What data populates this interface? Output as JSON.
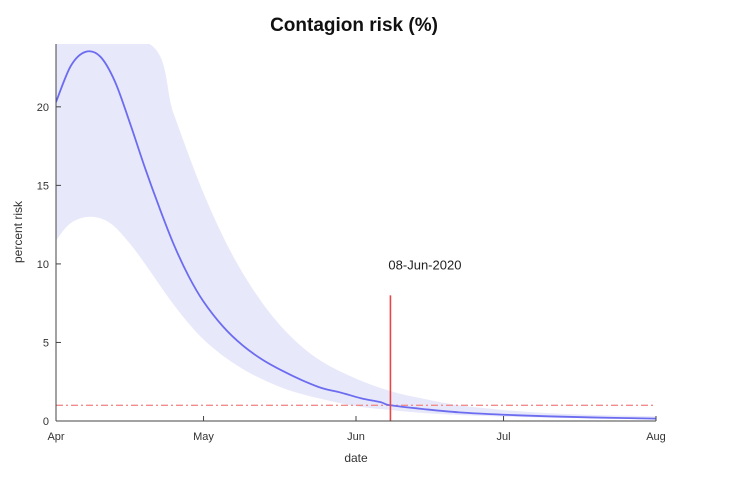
{
  "chart_data": {
    "type": "line",
    "title": "Contagion risk (%)",
    "xlabel": "date",
    "ylabel": "percent risk",
    "x_axis": {
      "type": "date",
      "range": [
        "2020-04-01",
        "2020-08-01"
      ],
      "ticks": [
        {
          "date": "2020-04-01",
          "label": "Apr"
        },
        {
          "date": "2020-05-01",
          "label": "May"
        },
        {
          "date": "2020-06-01",
          "label": "Jun"
        },
        {
          "date": "2020-07-01",
          "label": "Jul"
        },
        {
          "date": "2020-08-01",
          "label": "Aug"
        }
      ]
    },
    "y_axis": {
      "range": [
        0,
        24
      ],
      "ticks": [
        0,
        5,
        10,
        15,
        20
      ]
    },
    "grid": false,
    "legend": "none",
    "series": [
      {
        "kind": "line",
        "color": "#6c6cf0",
        "points": [
          [
            "2020-04-01",
            20.3
          ],
          [
            "2020-04-04",
            22.6
          ],
          [
            "2020-04-07",
            23.5
          ],
          [
            "2020-04-10",
            23.2
          ],
          [
            "2020-04-13",
            21.6
          ],
          [
            "2020-04-16",
            19.0
          ],
          [
            "2020-04-19",
            16.2
          ],
          [
            "2020-04-22",
            13.6
          ],
          [
            "2020-04-25",
            11.2
          ],
          [
            "2020-04-28",
            9.2
          ],
          [
            "2020-05-01",
            7.6
          ],
          [
            "2020-05-05",
            6.0
          ],
          [
            "2020-05-09",
            4.8
          ],
          [
            "2020-05-13",
            3.9
          ],
          [
            "2020-05-17",
            3.2
          ],
          [
            "2020-05-21",
            2.6
          ],
          [
            "2020-05-25",
            2.1
          ],
          [
            "2020-05-29",
            1.8
          ],
          [
            "2020-06-02",
            1.45
          ],
          [
            "2020-06-06",
            1.2
          ],
          [
            "2020-06-08",
            1.0
          ],
          [
            "2020-06-15",
            0.75
          ],
          [
            "2020-06-22",
            0.55
          ],
          [
            "2020-07-01",
            0.4
          ],
          [
            "2020-07-10",
            0.3
          ],
          [
            "2020-07-20",
            0.22
          ],
          [
            "2020-08-01",
            0.15
          ]
        ]
      },
      {
        "kind": "band",
        "color": "#e8e8fb",
        "upper": [
          [
            "2020-04-01",
            24
          ],
          [
            "2020-04-20",
            24
          ],
          [
            "2020-04-25",
            19.5
          ],
          [
            "2020-05-01",
            14.5
          ],
          [
            "2020-05-07",
            10.5
          ],
          [
            "2020-05-13",
            7.5
          ],
          [
            "2020-05-19",
            5.3
          ],
          [
            "2020-05-25",
            3.8
          ],
          [
            "2020-06-01",
            2.7
          ],
          [
            "2020-06-08",
            1.9
          ],
          [
            "2020-06-15",
            1.4
          ],
          [
            "2020-06-22",
            1.0
          ],
          [
            "2020-07-01",
            0.7
          ],
          [
            "2020-07-10",
            0.5
          ],
          [
            "2020-07-20",
            0.38
          ],
          [
            "2020-08-01",
            0.3
          ]
        ],
        "lower": [
          [
            "2020-04-01",
            11.5
          ],
          [
            "2020-04-04",
            12.6
          ],
          [
            "2020-04-08",
            13.0
          ],
          [
            "2020-04-12",
            12.6
          ],
          [
            "2020-04-16",
            11.3
          ],
          [
            "2020-04-20",
            9.6
          ],
          [
            "2020-04-24",
            7.8
          ],
          [
            "2020-04-28",
            6.2
          ],
          [
            "2020-05-02",
            4.9
          ],
          [
            "2020-05-07",
            3.7
          ],
          [
            "2020-05-12",
            2.8
          ],
          [
            "2020-05-18",
            2.0
          ],
          [
            "2020-05-25",
            1.4
          ],
          [
            "2020-06-01",
            0.95
          ],
          [
            "2020-06-08",
            0.7
          ],
          [
            "2020-06-15",
            0.5
          ],
          [
            "2020-06-22",
            0.38
          ],
          [
            "2020-07-01",
            0.28
          ],
          [
            "2020-07-15",
            0.18
          ],
          [
            "2020-08-01",
            0.1
          ]
        ]
      }
    ],
    "threshold": {
      "y": 1,
      "style": "dash-dot",
      "color": "#f08c8c"
    },
    "annotation": {
      "date": "2020-06-08",
      "y_top": 8,
      "label": "08-Jun-2020",
      "color": "#e84545"
    }
  }
}
